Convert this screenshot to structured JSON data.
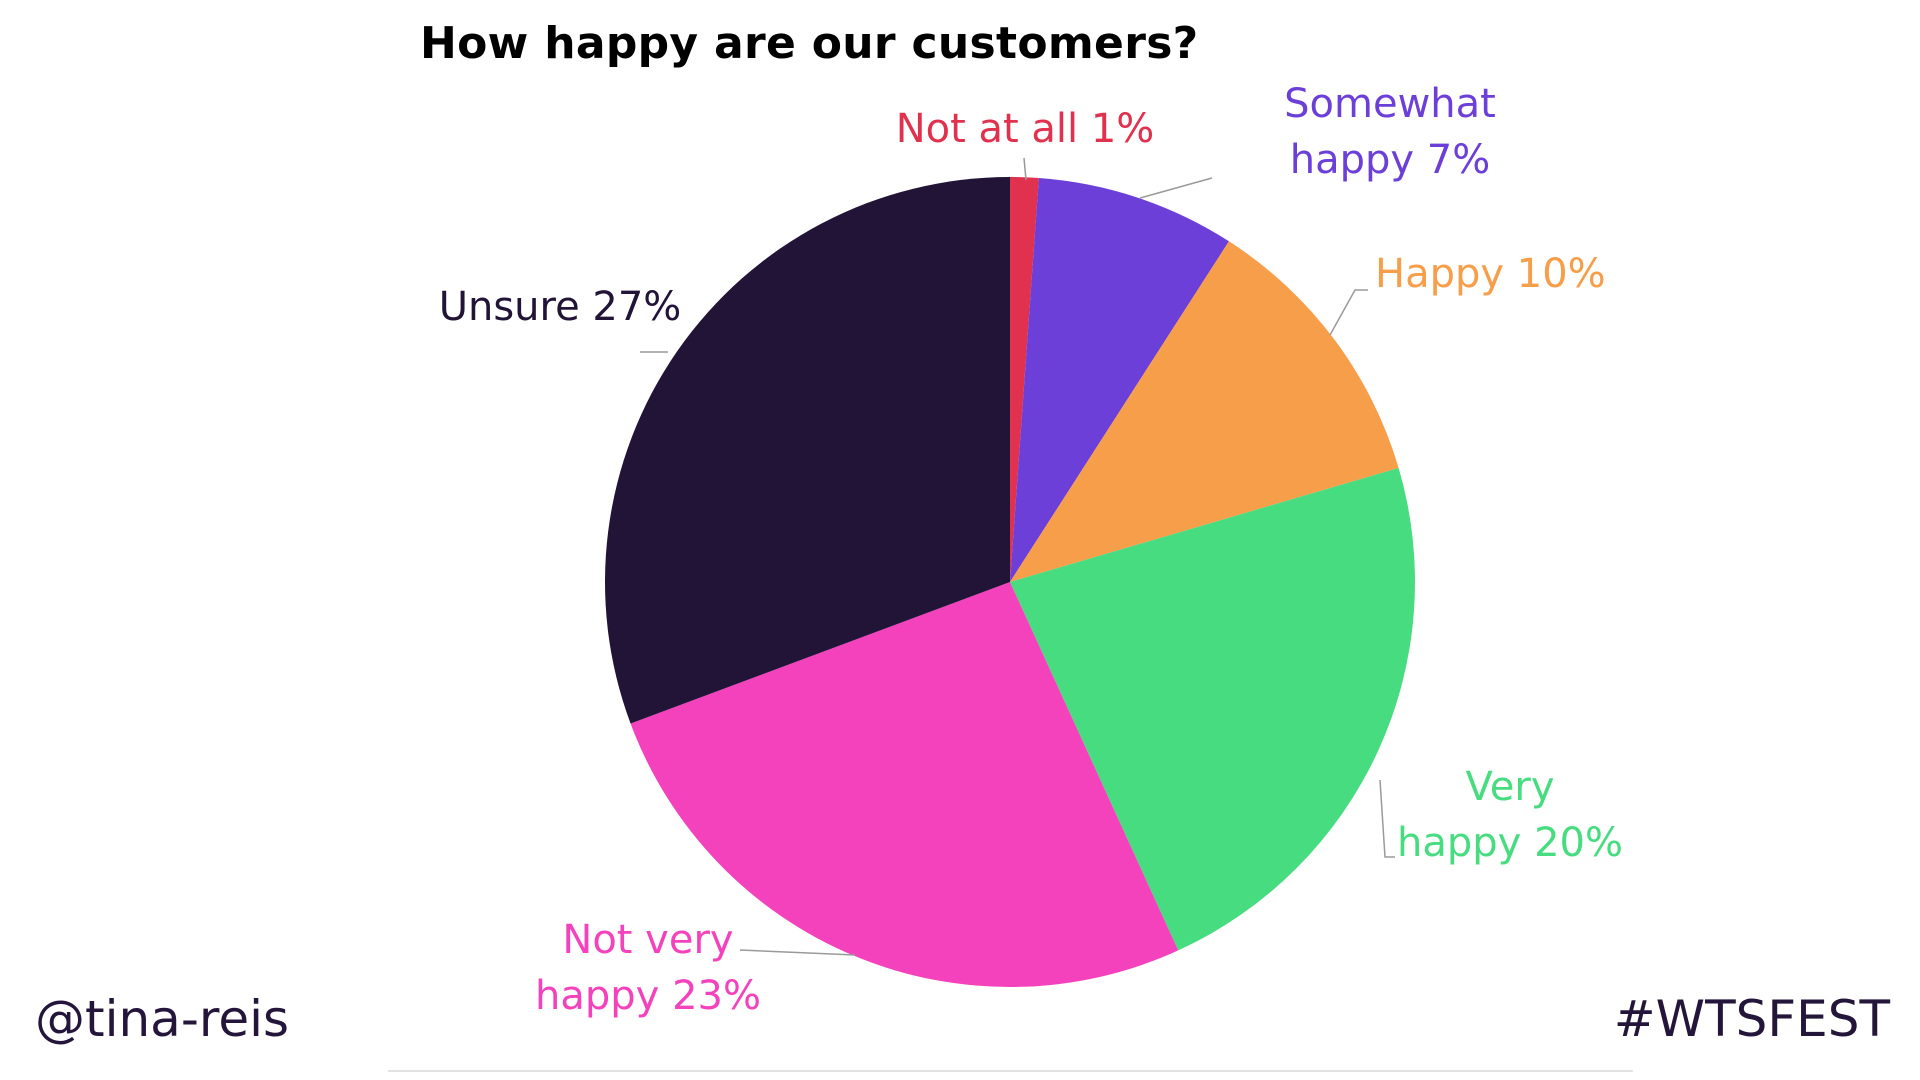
{
  "chart_data": {
    "type": "pie",
    "title": "How happy are our customers?",
    "start_angle_deg": 0,
    "direction": "clockwise",
    "slices": [
      {
        "label_lines": [
          "Not at all 1%"
        ],
        "value": 1,
        "color": "#e0324e"
      },
      {
        "label_lines": [
          "Somewhat",
          "happy 7%"
        ],
        "value": 7,
        "color": "#6b3fd8"
      },
      {
        "label_lines": [
          "Happy 10%"
        ],
        "value": 10,
        "color": "#f79e4a"
      },
      {
        "label_lines": [
          "Very",
          "happy 20%"
        ],
        "value": 20,
        "color": "#48dc80"
      },
      {
        "label_lines": [
          "Not very",
          "happy 23%"
        ],
        "value": 23,
        "color": "#f342bb"
      },
      {
        "label_lines": [
          "Unsure 27%"
        ],
        "value": 27,
        "color": "#221437"
      }
    ]
  },
  "footer": {
    "handle": "@tina-reis",
    "hashtag": "#WTSFEST"
  }
}
